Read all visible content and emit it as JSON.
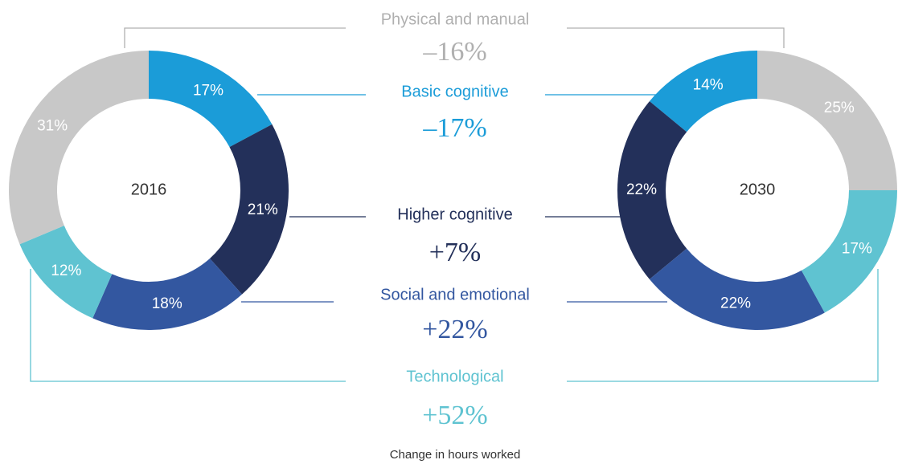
{
  "chart_data": [
    {
      "type": "pie",
      "center_label": "2016",
      "direction": "clockwise",
      "values": [
        17,
        21,
        18,
        12,
        31
      ],
      "value_labels": [
        "17%",
        "21%",
        "18%",
        "12%",
        "31%"
      ],
      "colors": [
        "#1b9cd8",
        "#23305a",
        "#3357a0",
        "#5fc3d1",
        "#c8c8c8"
      ]
    },
    {
      "type": "pie",
      "center_label": "2030",
      "direction": "counterclockwise",
      "values": [
        14,
        22,
        22,
        17,
        25
      ],
      "value_labels": [
        "14%",
        "22%",
        "22%",
        "17%",
        "25%"
      ],
      "colors": [
        "#1b9cd8",
        "#23305a",
        "#3357a0",
        "#5fc3d1",
        "#c8c8c8"
      ]
    }
  ],
  "summary": {
    "items": [
      {
        "name": "Physical and manual",
        "color": "#b0b0b0",
        "change": {
          "value": -16,
          "label": "–16%"
        }
      },
      {
        "name": "Basic cognitive",
        "color": "#1b9cd8",
        "change": {
          "value": -17,
          "label": "–17%"
        }
      },
      {
        "name": "Higher cognitive",
        "color": "#23305a",
        "change": {
          "value": 7,
          "label": "+7%"
        }
      },
      {
        "name": "Social and emotional",
        "color": "#3357a0",
        "change": {
          "value": 22,
          "label": "+22%"
        }
      },
      {
        "name": "Technological",
        "color": "#5fc3d1",
        "change": {
          "value": 52,
          "label": "+52%"
        }
      }
    ],
    "note": "Change in hours worked"
  }
}
